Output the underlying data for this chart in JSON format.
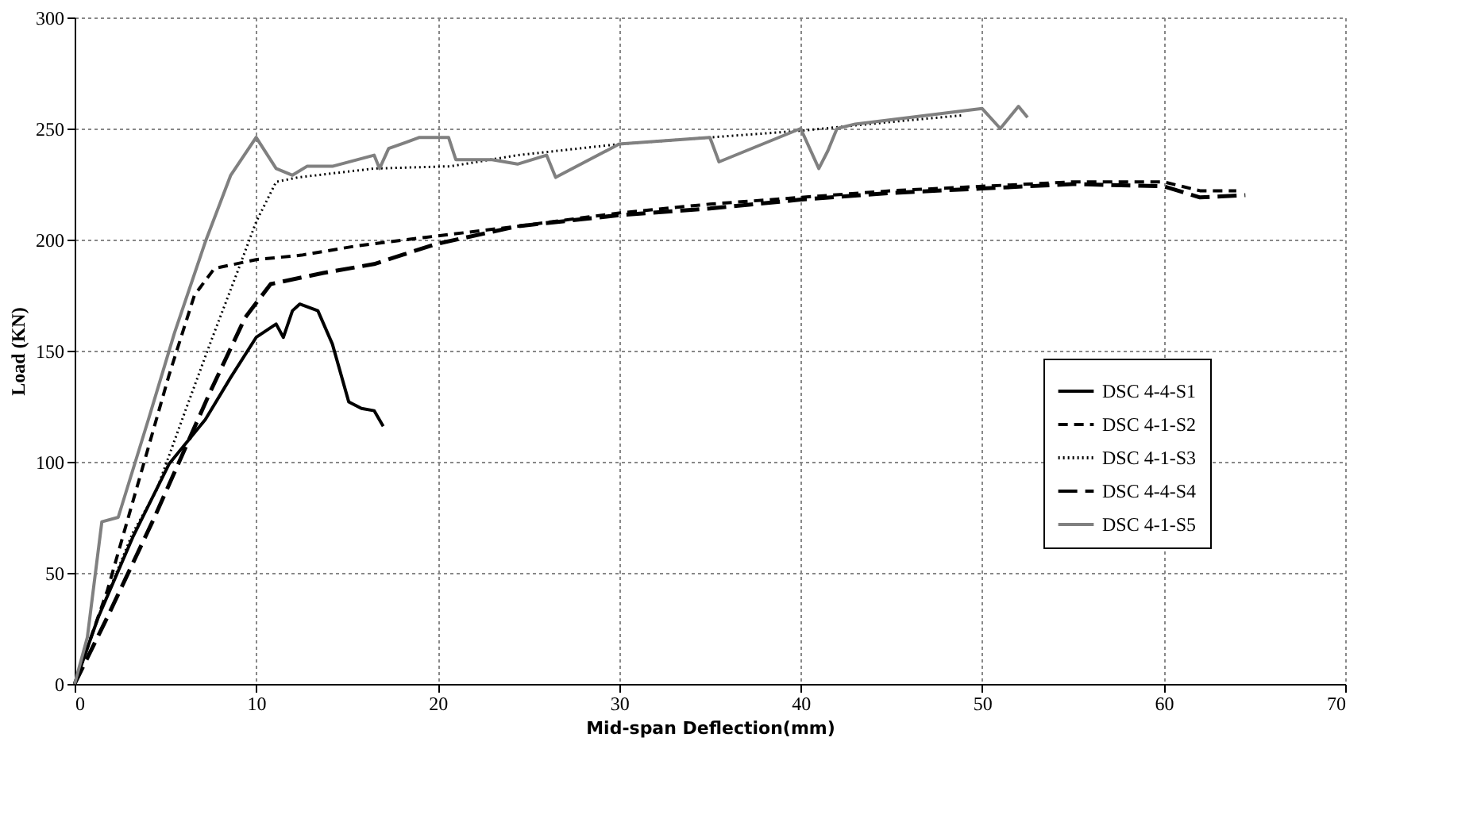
{
  "chart_data": {
    "type": "line",
    "xlabel": "Mid-span Deflection(mm)",
    "ylabel": "Load (KN)",
    "xlim": [
      0,
      70
    ],
    "xticks": [
      0,
      10,
      20,
      30,
      40,
      50,
      60,
      70
    ],
    "ylim": [
      0,
      300
    ],
    "yticks": [
      0,
      50,
      100,
      150,
      200,
      250,
      300
    ],
    "grid": true,
    "legend": "right",
    "marker": "none",
    "series": [
      {
        "name": "DSC 4-4-S1",
        "color": "#000000",
        "line_style": "solid",
        "x": [
          0,
          1.3,
          3.2,
          5.2,
          7.2,
          8.6,
          10,
          11.1,
          11.5,
          12,
          12.4,
          13.4,
          14.2,
          15.1,
          15.8,
          16.5,
          17
        ],
        "values": [
          0,
          30,
          66,
          99,
          119,
          138,
          156,
          162,
          156,
          168,
          171,
          168,
          153,
          127,
          124,
          123,
          116
        ]
      },
      {
        "name": "DSC 4-1-S2",
        "color": "#000000",
        "line_style": "dashed",
        "x": [
          0,
          1.8,
          3.8,
          5.2,
          6.6,
          7.7,
          10,
          12.5,
          15.4,
          19.3,
          24.4,
          30,
          35,
          40,
          45,
          50,
          55,
          60,
          62,
          64
        ],
        "values": [
          0,
          42,
          99,
          139,
          175,
          187,
          191,
          193,
          197,
          201,
          206,
          212,
          216,
          219,
          222,
          224,
          226,
          226,
          222,
          222
        ]
      },
      {
        "name": "DSC 4-1-S3",
        "color": "#000000",
        "line_style": "dotted",
        "x": [
          0,
          1.3,
          3.2,
          4.5,
          6.1,
          7.5,
          8.9,
          10,
          11.1,
          12.3,
          16.5,
          20.7,
          24.4,
          30,
          35,
          40,
          45,
          49
        ],
        "values": [
          0,
          30,
          68,
          87,
          123,
          154,
          184,
          208,
          226,
          228,
          232,
          233,
          238,
          243,
          246,
          249,
          253,
          256
        ]
      },
      {
        "name": "DSC 4-4-S4",
        "color": "#000000",
        "line_style": "longdash",
        "x": [
          0,
          1.8,
          4.4,
          7.5,
          9.4,
          10.8,
          13.7,
          16.5,
          19.9,
          24.4,
          30,
          35,
          40,
          45,
          50,
          55,
          60,
          62,
          64.5
        ],
        "values": [
          0,
          30,
          75,
          132,
          165,
          180,
          185,
          189,
          198,
          206,
          211,
          214,
          218,
          221,
          223,
          225,
          224,
          219,
          220
        ]
      },
      {
        "name": "DSC 4-1-S5",
        "color": "#808080",
        "line_style": "solid",
        "x": [
          0,
          0.7,
          1.5,
          2.4,
          4.1,
          5.5,
          7.2,
          8.6,
          10,
          11.1,
          12,
          12.8,
          14.2,
          16.5,
          16.8,
          17.3,
          19,
          20.6,
          21,
          23,
          24.4,
          26,
          26.5,
          30,
          35,
          35.5,
          40,
          41,
          41.5,
          42,
          43,
          47,
          50,
          51,
          52,
          52.5
        ],
        "values": [
          0,
          21,
          73,
          75,
          120,
          158,
          199,
          229,
          246,
          232,
          229,
          233,
          233,
          238,
          232,
          241,
          246,
          246,
          236,
          236,
          234,
          238,
          228,
          243,
          246,
          235,
          250,
          232,
          240,
          250,
          252,
          256,
          259,
          250,
          260,
          255
        ]
      }
    ]
  }
}
